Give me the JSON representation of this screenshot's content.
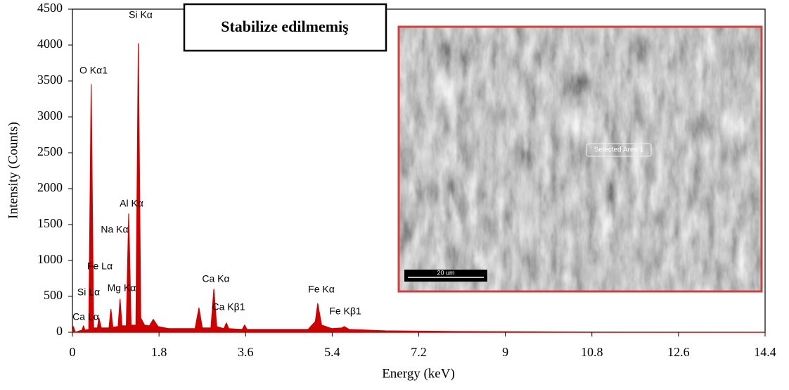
{
  "chart_data": {
    "type": "area",
    "title": "Stabilize edilmemiş",
    "x_label": "Energy (keV)",
    "y_label": "Intensity (Counts)",
    "color": "#cc0000",
    "xlim": [
      0,
      14.4
    ],
    "ylim": [
      0,
      4500
    ],
    "xticks": [
      0,
      1.8,
      3.6,
      5.4,
      7.2,
      9,
      10.8,
      12.6,
      14.4
    ],
    "yticks": [
      0,
      500,
      1000,
      1500,
      2000,
      2500,
      3000,
      3500,
      4000,
      4500
    ],
    "x": [
      0,
      0.02,
      0.06,
      0.2,
      0.23,
      0.26,
      0.34,
      0.39,
      0.44,
      0.52,
      0.55,
      0.6,
      0.76,
      0.8,
      0.84,
      0.95,
      0.99,
      1.03,
      1.12,
      1.17,
      1.22,
      1.32,
      1.37,
      1.42,
      1.5,
      1.6,
      1.68,
      1.78,
      2.0,
      2.55,
      2.63,
      2.7,
      2.88,
      2.94,
      3.0,
      3.15,
      3.2,
      3.25,
      3.53,
      3.58,
      3.63,
      4.9,
      5.05,
      5.1,
      5.18,
      5.4,
      5.6,
      5.65,
      5.75,
      6.5,
      8,
      10,
      14.4
    ],
    "values": [
      0,
      80,
      0,
      30,
      90,
      30,
      40,
      3450,
      60,
      60,
      200,
      60,
      60,
      320,
      70,
      80,
      460,
      90,
      90,
      1650,
      100,
      100,
      4020,
      200,
      100,
      90,
      180,
      80,
      50,
      50,
      340,
      60,
      60,
      600,
      80,
      50,
      130,
      50,
      40,
      100,
      40,
      40,
      150,
      400,
      100,
      50,
      60,
      80,
      40,
      20,
      10,
      5,
      0
    ],
    "annotations": [
      "Si Kα",
      "O  Kα1",
      "Al Kα",
      "Na Kα",
      "Fe Lα",
      "Si Lα",
      "Mg Kα",
      "Ca Lα",
      "Ca Kα",
      "Ca Kβ1",
      "Fe Kα",
      "Fe Kβ1"
    ],
    "inset": {
      "region_label": "Selected Area 1",
      "scale_bar": "20 um"
    }
  }
}
